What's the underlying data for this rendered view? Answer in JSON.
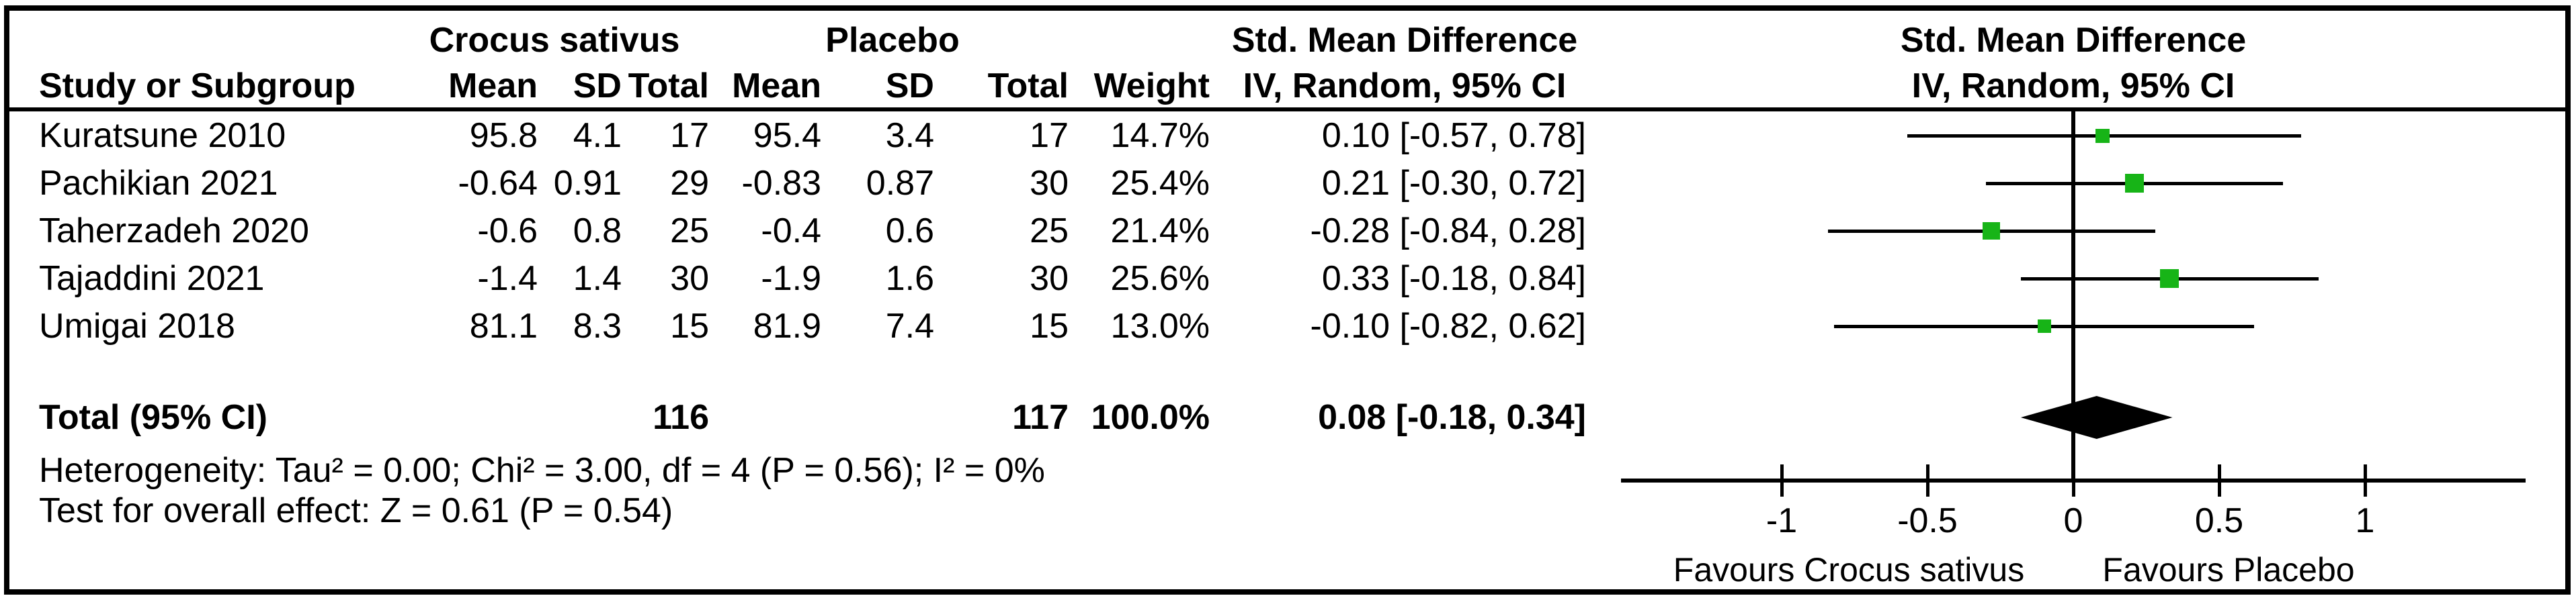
{
  "figure": {
    "left_panel_header": {
      "group1": "Crocus sativus",
      "group2": "Placebo",
      "effect_title": "Std. Mean Difference",
      "effect_subtitle": "IV, Random, 95% CI",
      "study_col": "Study or Subgroup",
      "mean_col": "Mean",
      "sd_col": "SD",
      "total_col": "Total",
      "weight_col": "Weight"
    },
    "plot_header": {
      "title": "Std. Mean Difference",
      "subtitle": "IV, Random, 95% CI"
    }
  },
  "table": {
    "rows": [
      {
        "study": "Kuratsune 2010",
        "mean_t": "95.8",
        "sd_t": "4.1",
        "total_t": "17",
        "mean_c": "95.4",
        "sd_c": "3.4",
        "total_c": "17",
        "weight": "14.7%",
        "smd_ci": "0.10 [-0.57, 0.78]"
      },
      {
        "study": "Pachikian 2021",
        "mean_t": "-0.64",
        "sd_t": "0.91",
        "total_t": "29",
        "mean_c": "-0.83",
        "sd_c": "0.87",
        "total_c": "30",
        "weight": "25.4%",
        "smd_ci": "0.21 [-0.30, 0.72]"
      },
      {
        "study": "Taherzadeh 2020",
        "mean_t": "-0.6",
        "sd_t": "0.8",
        "total_t": "25",
        "mean_c": "-0.4",
        "sd_c": "0.6",
        "total_c": "25",
        "weight": "21.4%",
        "smd_ci": "-0.28 [-0.84, 0.28]"
      },
      {
        "study": "Tajaddini 2021",
        "mean_t": "-1.4",
        "sd_t": "1.4",
        "total_t": "30",
        "mean_c": "-1.9",
        "sd_c": "1.6",
        "total_c": "30",
        "weight": "25.6%",
        "smd_ci": "0.33 [-0.18, 0.84]"
      },
      {
        "study": "Umigai 2018",
        "mean_t": "81.1",
        "sd_t": "8.3",
        "total_t": "15",
        "mean_c": "81.9",
        "sd_c": "7.4",
        "total_c": "15",
        "weight": "13.0%",
        "smd_ci": "-0.10 [-0.82, 0.62]"
      }
    ],
    "total_row": {
      "label": "Total (95% CI)",
      "total_t": "116",
      "total_c": "117",
      "weight": "100.0%",
      "smd_ci": "0.08 [-0.18, 0.34]"
    },
    "heterogeneity": "Heterogeneity: Tau² = 0.00; Chi² = 3.00, df = 4 (P = 0.56); I² = 0%",
    "overall_effect": "Test for overall effect: Z = 0.61 (P = 0.54)"
  },
  "chart_data": {
    "type": "forest",
    "title": "Std. Mean Difference",
    "subtitle": "IV, Random, 95% CI",
    "studies": [
      "Kuratsune 2010",
      "Pachikian 2021",
      "Taherzadeh 2020",
      "Tajaddini 2021",
      "Umigai 2018"
    ],
    "estimates": [
      0.1,
      0.21,
      -0.28,
      0.33,
      -0.1
    ],
    "ci_low": [
      -0.57,
      -0.3,
      -0.84,
      -0.18,
      -0.82
    ],
    "ci_high": [
      0.78,
      0.72,
      0.28,
      0.84,
      0.62
    ],
    "weights_pct": [
      14.7,
      25.4,
      21.4,
      25.6,
      13.0
    ],
    "total": {
      "estimate": 0.08,
      "ci_low": -0.18,
      "ci_high": 0.34
    },
    "axis_ticks": [
      "-1",
      "-0.5",
      "0",
      "0.5",
      "1"
    ],
    "axis_tick_values": [
      -1,
      -0.5,
      0,
      0.5,
      1
    ],
    "xlim": [
      -1.55,
      1.55
    ],
    "favours_left": "Favours Crocus sativus",
    "favours_right": "Favours Placebo",
    "marker_color": "#17b417",
    "line_color": "#000000"
  }
}
